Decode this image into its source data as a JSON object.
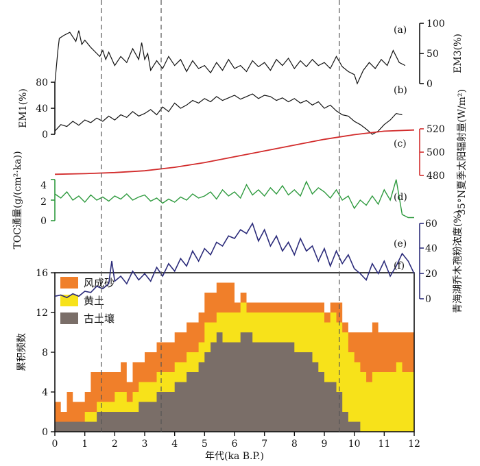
{
  "chart_data": [
    {
      "type": "line",
      "panel": "(a)",
      "ylabel": "EM3(%)",
      "ylim": [
        0,
        100
      ],
      "yticks": [
        "0",
        "50",
        "100"
      ],
      "axis_side": "right",
      "color": "#111111",
      "series": [
        {
          "name": "EM3",
          "x": [
            0.0,
            0.1,
            0.15,
            0.3,
            0.5,
            0.7,
            0.8,
            0.9,
            1.0,
            1.2,
            1.4,
            1.5,
            1.6,
            1.7,
            1.8,
            2.0,
            2.2,
            2.4,
            2.6,
            2.8,
            2.9,
            3.0,
            3.1,
            3.2,
            3.4,
            3.6,
            3.8,
            4.0,
            4.2,
            4.4,
            4.6,
            4.8,
            5.0,
            5.2,
            5.4,
            5.6,
            5.8,
            6.0,
            6.2,
            6.4,
            6.6,
            6.8,
            7.0,
            7.2,
            7.4,
            7.6,
            7.8,
            8.0,
            8.2,
            8.4,
            8.6,
            8.8,
            9.0,
            9.2,
            9.4,
            9.6,
            9.8,
            10.0,
            10.1,
            10.3,
            10.5,
            10.7,
            10.9,
            11.1,
            11.3,
            11.5,
            11.7
          ],
          "values": [
            0,
            55,
            75,
            80,
            85,
            70,
            88,
            65,
            72,
            60,
            50,
            45,
            55,
            40,
            52,
            30,
            45,
            35,
            58,
            40,
            68,
            40,
            50,
            22,
            38,
            25,
            45,
            30,
            40,
            20,
            38,
            25,
            30,
            18,
            35,
            22,
            40,
            25,
            30,
            20,
            38,
            28,
            35,
            22,
            40,
            30,
            42,
            25,
            38,
            28,
            40,
            30,
            35,
            25,
            45,
            28,
            20,
            15,
            0,
            22,
            35,
            25,
            40,
            30,
            55,
            35,
            30
          ]
        }
      ],
      "xlim": [
        0,
        12
      ]
    },
    {
      "type": "line",
      "panel": "(b)",
      "ylabel": "EM1(%)",
      "ylim": [
        0,
        80
      ],
      "yticks": [
        "0",
        "40",
        "80"
      ],
      "axis_side": "left",
      "color": "#111111",
      "series": [
        {
          "name": "EM1",
          "x": [
            0.0,
            0.2,
            0.4,
            0.6,
            0.8,
            1.0,
            1.2,
            1.4,
            1.6,
            1.8,
            2.0,
            2.2,
            2.4,
            2.6,
            2.8,
            3.0,
            3.2,
            3.4,
            3.6,
            3.8,
            4.0,
            4.2,
            4.4,
            4.6,
            4.8,
            5.0,
            5.2,
            5.4,
            5.6,
            5.8,
            6.0,
            6.2,
            6.4,
            6.6,
            6.8,
            7.0,
            7.2,
            7.4,
            7.6,
            7.8,
            8.0,
            8.2,
            8.4,
            8.6,
            8.8,
            9.0,
            9.2,
            9.4,
            9.6,
            9.8,
            10.0,
            10.2,
            10.4,
            10.6,
            10.8,
            11.0,
            11.2,
            11.4,
            11.6
          ],
          "values": [
            5,
            15,
            12,
            20,
            14,
            22,
            18,
            25,
            20,
            28,
            22,
            30,
            26,
            35,
            28,
            32,
            38,
            30,
            42,
            35,
            48,
            40,
            45,
            52,
            48,
            55,
            50,
            58,
            52,
            56,
            60,
            54,
            58,
            62,
            55,
            60,
            58,
            52,
            56,
            50,
            55,
            48,
            52,
            45,
            50,
            40,
            45,
            36,
            30,
            28,
            20,
            15,
            8,
            0,
            5,
            15,
            22,
            32,
            30
          ]
        }
      ],
      "xlim": [
        0,
        12
      ]
    },
    {
      "type": "line",
      "panel": "(c)",
      "ylabel": "35°N夏季太阳辐射量(W/m²)",
      "ylim": [
        480,
        520
      ],
      "yticks": [
        "480",
        "500",
        "520"
      ],
      "axis_side": "right",
      "color": "#d22b2b",
      "series": [
        {
          "name": "35°N summer insolation",
          "x": [
            0,
            1,
            2,
            3,
            4,
            5,
            6,
            7,
            8,
            9,
            10,
            11,
            12
          ],
          "values": [
            481,
            481.5,
            482.5,
            484,
            487,
            491,
            496,
            501,
            506,
            511,
            515,
            518,
            519
          ]
        }
      ],
      "xlim": [
        0,
        12
      ]
    },
    {
      "type": "line",
      "panel": "(d)",
      "ylabel": "TOC通量(g/(cm²·ka))",
      "ylim": [
        0,
        4
      ],
      "yticks": [
        "0",
        "2",
        "4"
      ],
      "axis_side": "left",
      "color": "#2e9a3e",
      "series": [
        {
          "name": "TOC flux",
          "x": [
            0.0,
            0.2,
            0.4,
            0.6,
            0.8,
            1.0,
            1.2,
            1.4,
            1.6,
            1.8,
            2.0,
            2.2,
            2.4,
            2.6,
            2.8,
            3.0,
            3.2,
            3.4,
            3.6,
            3.8,
            4.0,
            4.2,
            4.4,
            4.6,
            4.8,
            5.0,
            5.2,
            5.4,
            5.6,
            5.8,
            6.0,
            6.2,
            6.4,
            6.6,
            6.8,
            7.0,
            7.2,
            7.4,
            7.6,
            7.8,
            8.0,
            8.2,
            8.4,
            8.6,
            8.8,
            9.0,
            9.2,
            9.4,
            9.6,
            9.8,
            10.0,
            10.2,
            10.4,
            10.6,
            10.8,
            11.0,
            11.2,
            11.4,
            11.6,
            11.8,
            12.0
          ],
          "values": [
            2.6,
            2.2,
            2.8,
            2.0,
            2.4,
            1.8,
            2.5,
            2.0,
            2.3,
            1.9,
            2.4,
            2.1,
            2.6,
            2.0,
            2.3,
            2.5,
            1.9,
            2.2,
            1.7,
            2.1,
            1.8,
            2.3,
            2.0,
            2.6,
            2.2,
            2.4,
            2.8,
            2.1,
            3.0,
            2.4,
            2.8,
            2.2,
            3.5,
            2.5,
            3.0,
            2.4,
            3.2,
            2.6,
            3.4,
            2.5,
            3.0,
            2.4,
            3.8,
            2.6,
            3.2,
            2.8,
            2.2,
            3.0,
            2.0,
            2.4,
            1.2,
            2.0,
            1.5,
            2.4,
            1.6,
            3.0,
            2.0,
            4.0,
            0.6,
            0.3,
            0.3
          ]
        }
      ],
      "xlim": [
        0,
        12
      ]
    },
    {
      "type": "line",
      "panel": "(e)",
      "ylabel": "青海湖乔木孢粉浓度(%)",
      "ylim": [
        0,
        60
      ],
      "yticks": [
        "0",
        "20",
        "40",
        "60"
      ],
      "axis_side": "right",
      "color": "#2b2b7a",
      "series": [
        {
          "name": "Qinghai Lake arboreal pollen",
          "x": [
            0.0,
            0.2,
            0.4,
            0.6,
            0.8,
            1.0,
            1.2,
            1.4,
            1.6,
            1.8,
            1.9,
            2.0,
            2.2,
            2.4,
            2.6,
            2.8,
            3.0,
            3.2,
            3.4,
            3.6,
            3.8,
            4.0,
            4.2,
            4.4,
            4.6,
            4.8,
            5.0,
            5.2,
            5.4,
            5.6,
            5.8,
            6.0,
            6.2,
            6.4,
            6.6,
            6.8,
            7.0,
            7.2,
            7.4,
            7.6,
            7.8,
            8.0,
            8.2,
            8.4,
            8.6,
            8.8,
            9.0,
            9.2,
            9.4,
            9.6,
            9.8,
            10.0,
            10.2,
            10.4,
            10.6,
            10.8,
            11.0,
            11.2,
            11.4,
            11.6,
            11.8,
            12.0
          ],
          "values": [
            2,
            3,
            1,
            4,
            2,
            6,
            5,
            10,
            8,
            12,
            30,
            14,
            18,
            12,
            22,
            15,
            20,
            14,
            25,
            18,
            28,
            22,
            32,
            26,
            38,
            30,
            40,
            35,
            45,
            42,
            50,
            48,
            55,
            52,
            60,
            46,
            55,
            42,
            50,
            38,
            45,
            35,
            48,
            38,
            42,
            30,
            40,
            26,
            38,
            28,
            35,
            24,
            20,
            15,
            28,
            20,
            30,
            18,
            26,
            36,
            30,
            20
          ]
        }
      ],
      "xlim": [
        0,
        12
      ]
    },
    {
      "type": "area",
      "panel": "(f)",
      "ylabel": "累积频数",
      "xlabel": "年代(ka B.P.)",
      "ylim": [
        0,
        16
      ],
      "xlim": [
        0,
        12
      ],
      "yticks": [
        "0",
        "4",
        "8",
        "12",
        "16"
      ],
      "xticks": [
        "0",
        "1",
        "2",
        "3",
        "4",
        "5",
        "6",
        "7",
        "8",
        "9",
        "10",
        "11",
        "12"
      ],
      "stacked": true,
      "x": [
        0.0,
        0.2,
        0.4,
        0.6,
        0.8,
        1.0,
        1.2,
        1.4,
        1.6,
        1.8,
        2.0,
        2.2,
        2.4,
        2.6,
        2.8,
        3.0,
        3.2,
        3.4,
        3.6,
        3.8,
        4.0,
        4.2,
        4.4,
        4.6,
        4.8,
        5.0,
        5.2,
        5.4,
        5.6,
        5.8,
        6.0,
        6.2,
        6.4,
        6.6,
        6.8,
        7.0,
        7.2,
        7.4,
        7.6,
        7.8,
        8.0,
        8.2,
        8.4,
        8.6,
        8.8,
        9.0,
        9.2,
        9.4,
        9.6,
        9.8,
        10.0,
        10.2,
        10.4,
        10.6,
        10.8,
        11.0,
        11.2,
        11.4,
        11.6,
        11.8
      ],
      "series": [
        {
          "name": "古土壤",
          "color": "#7a6e68",
          "values": [
            1,
            1,
            1,
            1,
            1,
            1,
            1,
            2,
            2,
            2,
            2,
            2,
            2,
            2,
            3,
            3,
            3,
            4,
            4,
            4,
            5,
            5,
            6,
            6,
            7,
            8,
            9,
            10,
            9,
            9,
            9,
            10,
            10,
            9,
            9,
            9,
            9,
            9,
            9,
            9,
            8,
            8,
            8,
            7,
            6,
            5,
            5,
            4,
            2,
            1,
            1,
            0,
            0,
            0,
            0,
            0,
            0,
            0,
            0,
            0
          ]
        },
        {
          "name": "黄土",
          "color": "#f7e21a",
          "values": [
            0,
            0,
            0,
            0,
            0,
            1,
            1,
            1,
            1,
            1,
            2,
            2,
            1,
            2,
            2,
            2,
            2,
            2,
            2,
            2,
            2,
            2,
            2,
            2,
            2,
            3,
            2,
            2,
            3,
            3,
            3,
            3,
            2,
            3,
            3,
            3,
            3,
            3,
            3,
            3,
            4,
            4,
            4,
            5,
            6,
            6,
            7,
            7,
            8,
            7,
            6,
            6,
            5,
            6,
            6,
            6,
            6,
            7,
            6,
            6
          ]
        },
        {
          "name": "风成砂",
          "color": "#f07f2a",
          "values": [
            2,
            1,
            3,
            2,
            2,
            2,
            4,
            3,
            3,
            3,
            2,
            3,
            2,
            3,
            2,
            3,
            3,
            3,
            3,
            3,
            3,
            3,
            3,
            3,
            3,
            3,
            3,
            3,
            3,
            3,
            1,
            1,
            1,
            1,
            1,
            1,
            1,
            1,
            1,
            1,
            1,
            1,
            1,
            1,
            1,
            1,
            1,
            2,
            1,
            2,
            3,
            4,
            5,
            5,
            4,
            4,
            4,
            3,
            4,
            4
          ]
        }
      ],
      "legend": [
        "风成砂",
        "黄土",
        "古土壤"
      ]
    }
  ],
  "reference_lines_ka": [
    1.55,
    3.55,
    9.5
  ]
}
